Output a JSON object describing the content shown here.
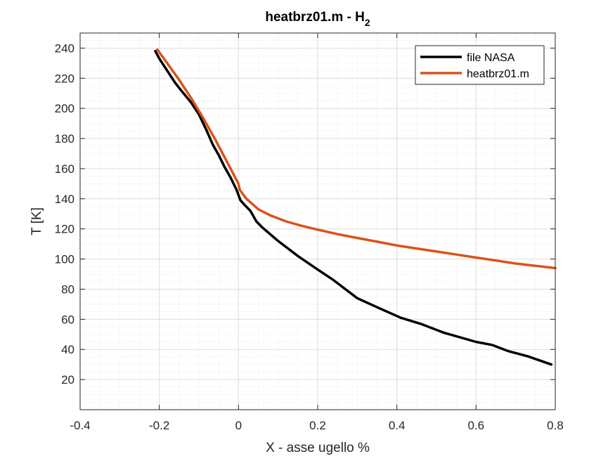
{
  "chart_data": {
    "type": "line",
    "title": "heatbrz01.m - H",
    "title_subscript": "2",
    "xlabel": "X - asse ugello %",
    "ylabel": "T [K]",
    "xlim": [
      -0.4,
      0.8
    ],
    "ylim": [
      0,
      250
    ],
    "xticks": [
      -0.4,
      -0.2,
      0,
      0.2,
      0.4,
      0.6,
      0.8
    ],
    "xtick_labels": [
      "-0.4",
      "-0.2",
      "0",
      "0.2",
      "0.4",
      "0.6",
      "0.8"
    ],
    "yticks": [
      20,
      40,
      60,
      80,
      100,
      120,
      140,
      160,
      180,
      200,
      220,
      240
    ],
    "ytick_labels": [
      "20",
      "40",
      "60",
      "80",
      "100",
      "120",
      "140",
      "160",
      "180",
      "200",
      "220",
      "240"
    ],
    "grid": true,
    "minor_grid": true,
    "legend_position": "top-right",
    "series": [
      {
        "name": "file NASA",
        "color": "#000000",
        "x": [
          -0.21,
          -0.2,
          -0.18,
          -0.16,
          -0.145,
          -0.12,
          -0.1,
          -0.08,
          -0.065,
          -0.05,
          -0.035,
          -0.02,
          -0.005,
          0.005,
          0.015,
          0.03,
          0.045,
          0.06,
          0.1,
          0.15,
          0.2,
          0.24,
          0.3,
          0.35,
          0.41,
          0.46,
          0.52,
          0.6,
          0.64,
          0.68,
          0.73,
          0.79
        ],
        "y": [
          238,
          233,
          225,
          217,
          212,
          204,
          196,
          185,
          176,
          169,
          161,
          154,
          146,
          139,
          136,
          132,
          125,
          121,
          112,
          102,
          93,
          86,
          74,
          68,
          61,
          57,
          51,
          45,
          43,
          39,
          35.5,
          30
        ]
      },
      {
        "name": "heatbrz01.m",
        "color": "#D95319",
        "x": [
          -0.205,
          -0.18,
          -0.15,
          -0.12,
          -0.09,
          -0.06,
          -0.03,
          -0.01,
          0.0,
          0.003,
          0.02,
          0.05,
          0.08,
          0.12,
          0.16,
          0.2,
          0.25,
          0.3,
          0.35,
          0.4,
          0.45,
          0.5,
          0.55,
          0.6,
          0.65,
          0.7,
          0.75,
          0.8
        ],
        "y": [
          239,
          230,
          219,
          207,
          194,
          180,
          165,
          155,
          150,
          146,
          140,
          133,
          129,
          125,
          122,
          119.5,
          116.5,
          114,
          111.5,
          109,
          107,
          105,
          103,
          101,
          99,
          97,
          95.5,
          94
        ]
      }
    ]
  }
}
